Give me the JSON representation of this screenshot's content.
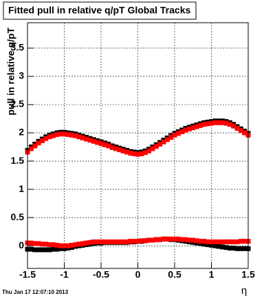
{
  "chart_data": {
    "type": "scatter",
    "title": "Fitted pull in relative q/pT  Global Tracks",
    "x_label": "η",
    "y_label": "pull in relative q/pT",
    "timestamp": "Thu Jan 17 12:07:10 2013",
    "x": [
      -1.5,
      -1.45,
      -1.4,
      -1.35,
      -1.3,
      -1.25,
      -1.2,
      -1.15,
      -1.1,
      -1.05,
      -1,
      -0.95,
      -0.9,
      -0.85,
      -0.8,
      -0.75,
      -0.7,
      -0.65,
      -0.6,
      -0.55,
      -0.5,
      -0.45,
      -0.4,
      -0.35,
      -0.3,
      -0.25,
      -0.2,
      -0.15,
      -0.1,
      -0.05,
      0,
      0.05,
      0.1,
      0.15,
      0.2,
      0.25,
      0.3,
      0.35,
      0.4,
      0.45,
      0.5,
      0.55,
      0.6,
      0.65,
      0.7,
      0.75,
      0.8,
      0.85,
      0.9,
      0.95,
      1,
      1.05,
      1.1,
      1.15,
      1.2,
      1.25,
      1.3,
      1.35,
      1.4,
      1.45,
      1.5
    ],
    "series": [
      {
        "color": "#000000",
        "values": [
          1.69,
          1.75,
          1.8,
          1.85,
          1.89,
          1.93,
          1.96,
          1.98,
          2.0,
          2.01,
          2.01,
          2.0,
          1.99,
          1.98,
          1.96,
          1.94,
          1.92,
          1.9,
          1.88,
          1.86,
          1.84,
          1.82,
          1.8,
          1.77,
          1.75,
          1.73,
          1.71,
          1.69,
          1.67,
          1.66,
          1.65,
          1.66,
          1.68,
          1.71,
          1.75,
          1.79,
          1.83,
          1.87,
          1.91,
          1.95,
          1.99,
          2.02,
          2.05,
          2.08,
          2.1,
          2.12,
          2.14,
          2.16,
          2.18,
          2.19,
          2.2,
          2.21,
          2.21,
          2.21,
          2.2,
          2.18,
          2.15,
          2.11,
          2.07,
          2.03,
          1.99
        ]
      },
      {
        "color": "#ff0000",
        "values": [
          1.66,
          1.72,
          1.77,
          1.82,
          1.86,
          1.9,
          1.93,
          1.95,
          1.97,
          1.98,
          1.98,
          1.97,
          1.96,
          1.95,
          1.93,
          1.91,
          1.89,
          1.87,
          1.85,
          1.83,
          1.81,
          1.79,
          1.77,
          1.74,
          1.72,
          1.7,
          1.68,
          1.66,
          1.64,
          1.63,
          1.62,
          1.63,
          1.65,
          1.68,
          1.72,
          1.76,
          1.8,
          1.84,
          1.88,
          1.92,
          1.96,
          1.99,
          2.02,
          2.05,
          2.07,
          2.09,
          2.11,
          2.13,
          2.15,
          2.16,
          2.17,
          2.18,
          2.18,
          2.18,
          2.17,
          2.15,
          2.12,
          2.08,
          2.04,
          2.0,
          1.96
        ]
      },
      {
        "color": "#000000",
        "values": [
          -0.06,
          -0.06,
          -0.07,
          -0.07,
          -0.07,
          -0.07,
          -0.07,
          -0.06,
          -0.06,
          -0.05,
          -0.05,
          -0.04,
          -0.03,
          -0.01,
          0.0,
          0.01,
          0.02,
          0.03,
          0.04,
          0.05,
          0.05,
          0.06,
          0.06,
          0.06,
          0.06,
          0.06,
          0.06,
          0.06,
          0.07,
          0.07,
          0.08,
          0.08,
          0.09,
          0.1,
          0.1,
          0.11,
          0.11,
          0.12,
          0.12,
          0.11,
          0.11,
          0.1,
          0.09,
          0.08,
          0.07,
          0.06,
          0.05,
          0.04,
          0.03,
          0.02,
          0.01,
          0.0,
          -0.01,
          -0.02,
          -0.03,
          -0.04,
          -0.04,
          -0.05,
          -0.05,
          -0.05,
          -0.05
        ]
      },
      {
        "color": "#ff0000",
        "values": [
          0.05,
          0.05,
          0.04,
          0.04,
          0.03,
          0.03,
          0.02,
          0.02,
          0.01,
          0.0,
          0.0,
          0.0,
          0.01,
          0.02,
          0.03,
          0.04,
          0.05,
          0.06,
          0.07,
          0.07,
          0.07,
          0.07,
          0.07,
          0.07,
          0.07,
          0.07,
          0.07,
          0.07,
          0.08,
          0.08,
          0.08,
          0.09,
          0.09,
          0.1,
          0.1,
          0.11,
          0.11,
          0.12,
          0.12,
          0.12,
          0.12,
          0.12,
          0.11,
          0.11,
          0.1,
          0.1,
          0.09,
          0.08,
          0.08,
          0.07,
          0.07,
          0.07,
          0.07,
          0.07,
          0.07,
          0.07,
          0.07,
          0.07,
          0.08,
          0.08,
          0.08
        ]
      }
    ],
    "xlim": [
      -1.5,
      1.5
    ],
    "ylim": [
      -0.4,
      3.95
    ],
    "xticks": [
      -1.5,
      -1,
      -0.5,
      0,
      0.5,
      1,
      1.5
    ],
    "yticks": [
      0,
      0.5,
      1,
      1.5,
      2,
      2.5,
      3,
      3.5
    ],
    "grid": true,
    "marker": "square"
  }
}
